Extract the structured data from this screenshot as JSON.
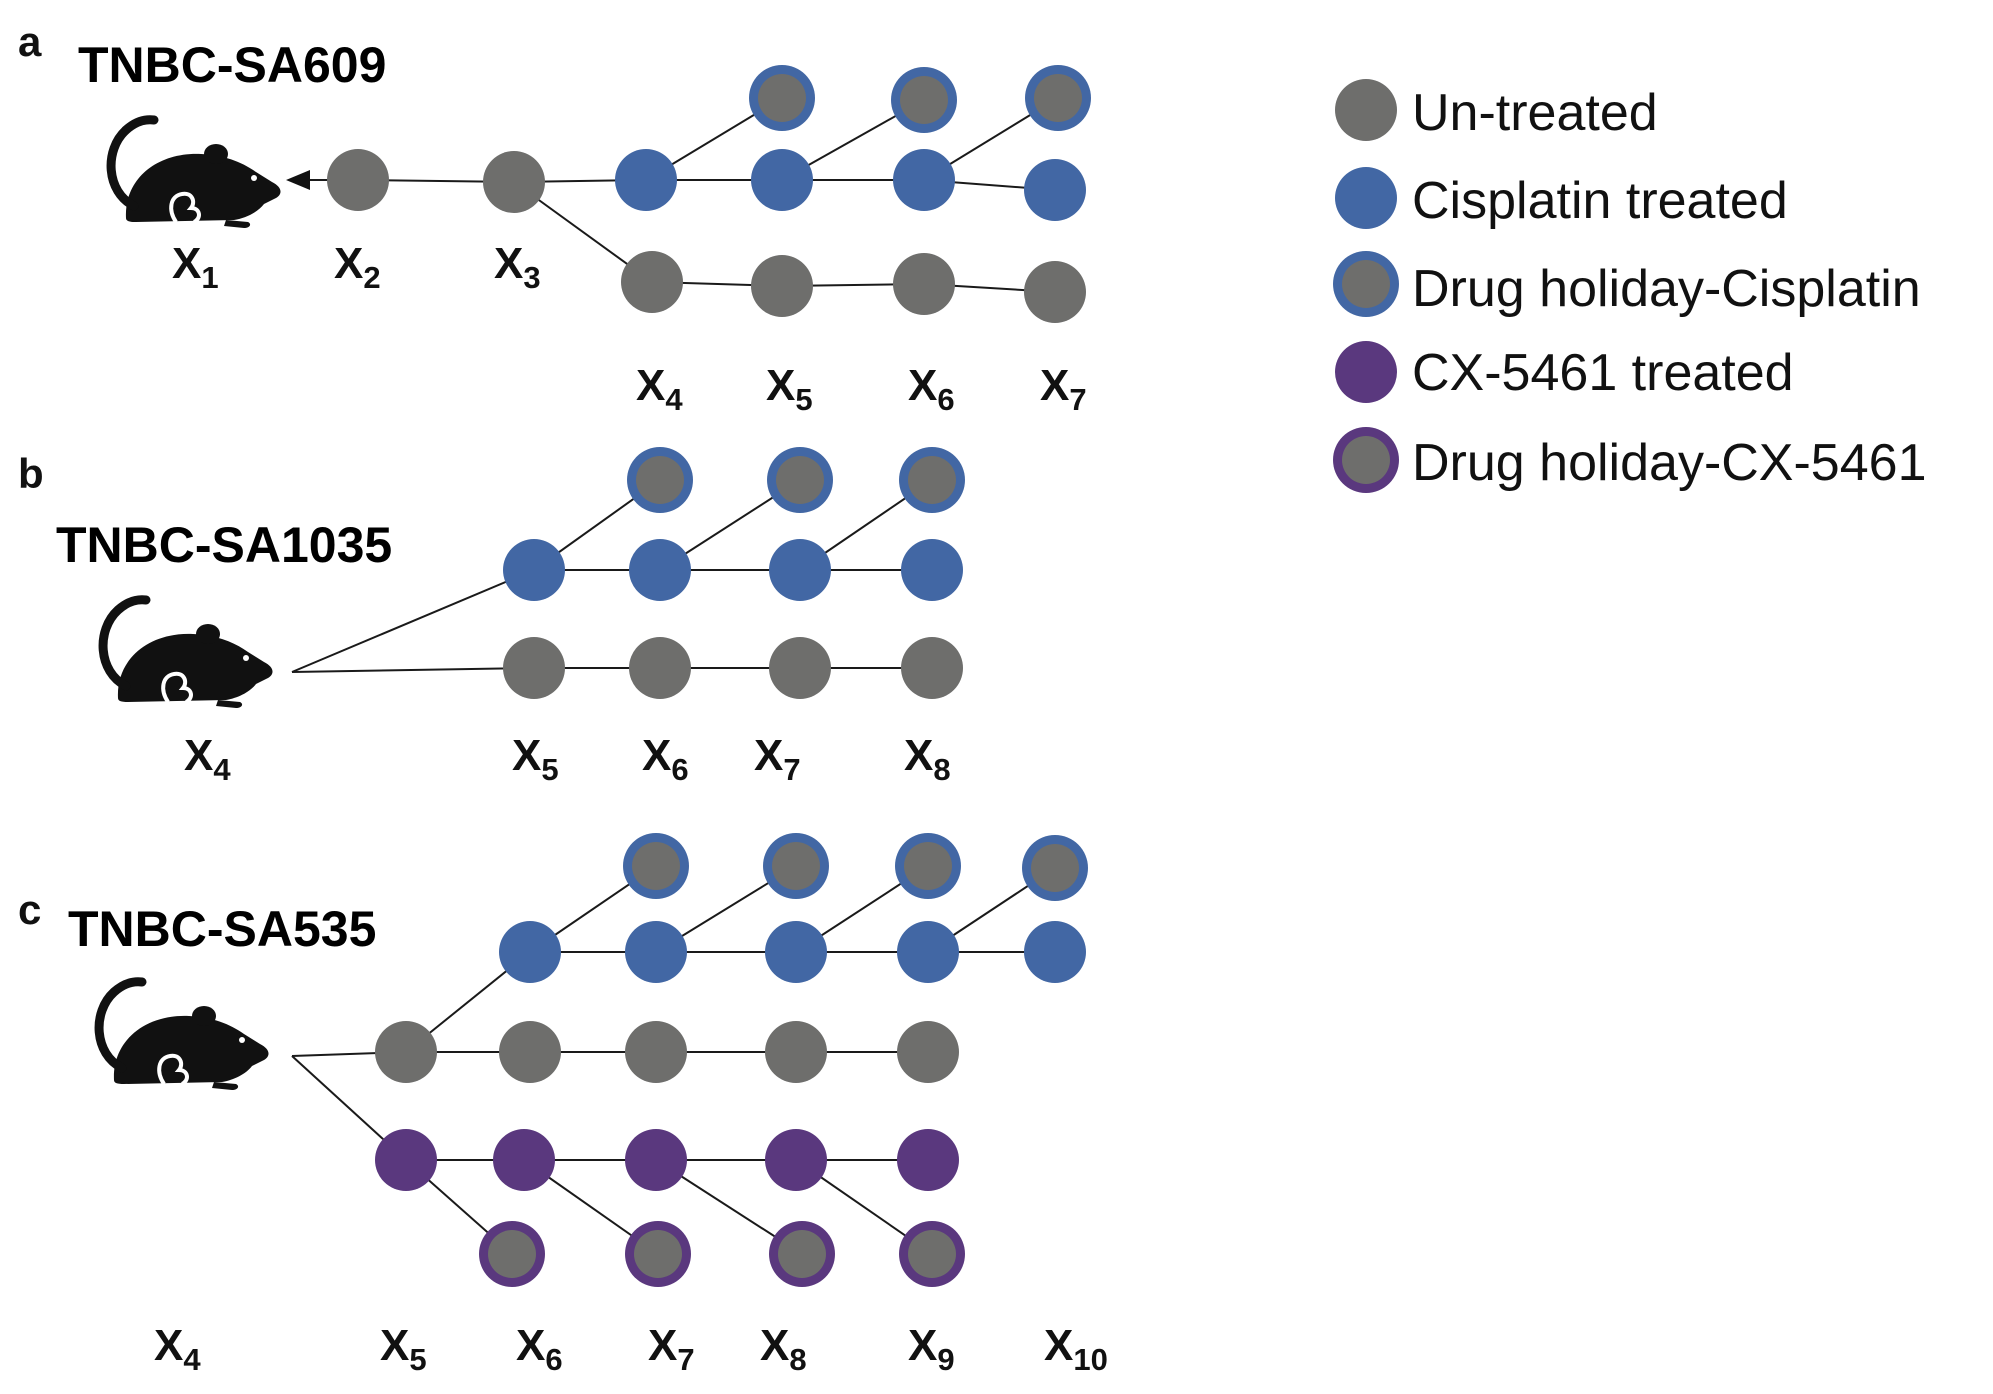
{
  "colors": {
    "untreated": "#6e6e6c",
    "cisplatin": "#4267a4",
    "cx5461": "#5a387e",
    "title": "#2d3480",
    "line": "#1a1a1a",
    "mouse": "#111111"
  },
  "legend": [
    {
      "label": "Un-treated",
      "style": "untreated"
    },
    {
      "label": "Cisplatin treated",
      "style": "cisplatin"
    },
    {
      "label": "Drug holiday-Cisplatin",
      "style": "holiday-cisplatin"
    },
    {
      "label": "CX-5461 treated",
      "style": "cx5461"
    },
    {
      "label": "Drug holiday-CX-5461",
      "style": "holiday-cx5461"
    }
  ],
  "panels": [
    {
      "letter": "a",
      "title": "TNBC-SA609",
      "xlabels": [
        {
          "x": "X",
          "sub": "1"
        },
        {
          "x": "X",
          "sub": "2"
        },
        {
          "x": "X",
          "sub": "3"
        },
        {
          "x": "X",
          "sub": "4"
        },
        {
          "x": "X",
          "sub": "5"
        },
        {
          "x": "X",
          "sub": "6"
        },
        {
          "x": "X",
          "sub": "7"
        }
      ]
    },
    {
      "letter": "b",
      "title": "TNBC-SA1035",
      "xlabels": [
        {
          "x": "X",
          "sub": "4"
        },
        {
          "x": "X",
          "sub": "5"
        },
        {
          "x": "X",
          "sub": "6"
        },
        {
          "x": "X",
          "sub": "7"
        },
        {
          "x": "X",
          "sub": "8"
        }
      ]
    },
    {
      "letter": "c",
      "title": "TNBC-SA535",
      "xlabels": [
        {
          "x": "X",
          "sub": "4"
        },
        {
          "x": "X",
          "sub": "5"
        },
        {
          "x": "X",
          "sub": "6"
        },
        {
          "x": "X",
          "sub": "7"
        },
        {
          "x": "X",
          "sub": "8"
        },
        {
          "x": "X",
          "sub": "9"
        },
        {
          "x": "X",
          "sub": "10"
        }
      ]
    }
  ]
}
